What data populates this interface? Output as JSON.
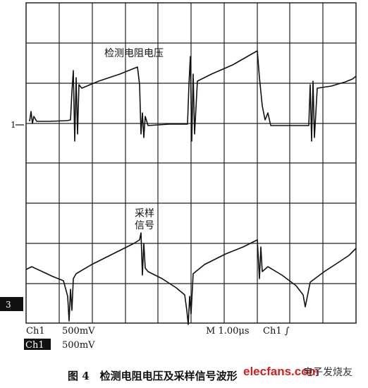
{
  "figure": {
    "annotations": {
      "upper_trace": "检测电阻电压",
      "lower_trace_line1": "采样",
      "lower_trace_line2": "信号"
    },
    "markers": {
      "ch1": "1",
      "ch3": "3"
    },
    "status": {
      "ch1_label": "Ch1",
      "ch1_scale": "500mV",
      "timebase": "M 1.00μs",
      "trigger": "Ch1 ∫",
      "ch3_label": "Ch1",
      "ch3_scale": "500mV"
    },
    "caption": "图 4　检测电阻电压及采样信号波形",
    "watermark": {
      "site": "elecfans.com",
      "brand": "电子发烧友"
    }
  }
}
